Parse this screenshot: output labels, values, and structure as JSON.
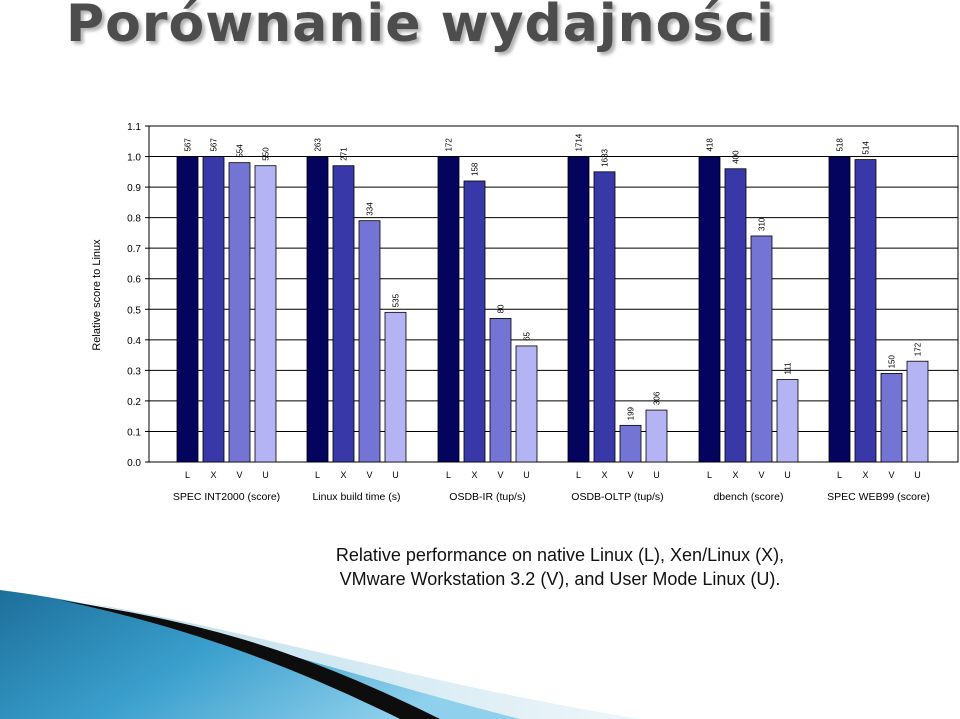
{
  "slide": {
    "title": "Porównanie wydajności",
    "caption_line1": "Relative performance on native Linux (L), Xen/Linux (X),",
    "caption_line2": "VMware Workstation 3.2 (V), and User Mode Linux (U)."
  },
  "colors": {
    "L": "#04045e",
    "X": "#3838a8",
    "V": "#7474d4",
    "U": "#b4b4f4"
  },
  "chart_data": {
    "type": "bar",
    "ylabel": "Relative score to Linux",
    "ylim": [
      0,
      1.1
    ],
    "yticks": [
      "0.0",
      "0.1",
      "0.2",
      "0.3",
      "0.4",
      "0.5",
      "0.6",
      "0.7",
      "0.8",
      "0.9",
      "1.0",
      "1.1"
    ],
    "grid": true,
    "series_letters": [
      "L",
      "X",
      "V",
      "U"
    ],
    "groups": [
      {
        "name": "SPEC INT2000 (score)",
        "values": [
          1.0,
          1.0,
          0.98,
          0.97
        ],
        "labels": [
          "567",
          "567",
          "554",
          "550"
        ]
      },
      {
        "name": "Linux build time (s)",
        "values": [
          1.0,
          0.97,
          0.79,
          0.49
        ],
        "labels": [
          "263",
          "271",
          "334",
          "535"
        ]
      },
      {
        "name": "OSDB-IR (tup/s)",
        "values": [
          1.0,
          0.92,
          0.47,
          0.38
        ],
        "labels": [
          "172",
          "158",
          "80",
          "65"
        ]
      },
      {
        "name": "OSDB-OLTP (tup/s)",
        "values": [
          1.0,
          0.95,
          0.12,
          0.17
        ],
        "labels": [
          "1714",
          "1633",
          "199",
          "306"
        ]
      },
      {
        "name": "dbench (score)",
        "values": [
          1.0,
          0.96,
          0.74,
          0.27
        ],
        "labels": [
          "418",
          "400",
          "310",
          "111"
        ]
      },
      {
        "name": "SPEC WEB99 (score)",
        "values": [
          1.0,
          0.99,
          0.29,
          0.33
        ],
        "labels": [
          "518",
          "514",
          "150",
          "172"
        ]
      }
    ]
  }
}
